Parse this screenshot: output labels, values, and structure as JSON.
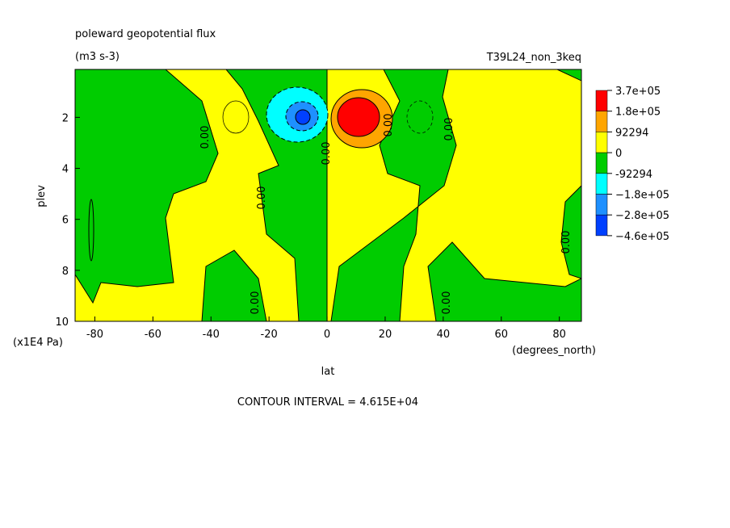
{
  "chart_data": {
    "type": "contour",
    "title": "poleward geopotential flux",
    "subtitle": "(m3 s-3)",
    "dataset": "T39L24_non_3keq",
    "x_label": "lat",
    "x_units": "(degrees_north)",
    "y_label": "plev",
    "y_units": "(x1E4 Pa)",
    "xlim": [
      -86.8,
      87.6
    ],
    "xticks": [
      -80,
      -60,
      -40,
      -20,
      0,
      20,
      40,
      60,
      80
    ],
    "ylim": [
      0.12,
      10
    ],
    "yticks": [
      2,
      4,
      6,
      8,
      10
    ],
    "levels": [
      {
        "value": 370000,
        "label": "3.7e+05"
      },
      {
        "value": 180000,
        "label": "1.8e+05"
      },
      92294,
      0,
      -92294,
      {
        "value": -180000,
        "label": "−1.8e+05"
      },
      {
        "value": -280000,
        "label": "−2.8e+05"
      },
      {
        "value": -460000,
        "label": "−4.6e+05"
      }
    ],
    "colors": [
      "#ff0000",
      "#ffa500",
      "#ffff00",
      "#00cc00",
      "#00ffff",
      "#1e90ff",
      "#0040ff"
    ],
    "contour_label": "0.00",
    "contour_interval": "CONTOUR INTERVAL = 4.615E+04"
  }
}
